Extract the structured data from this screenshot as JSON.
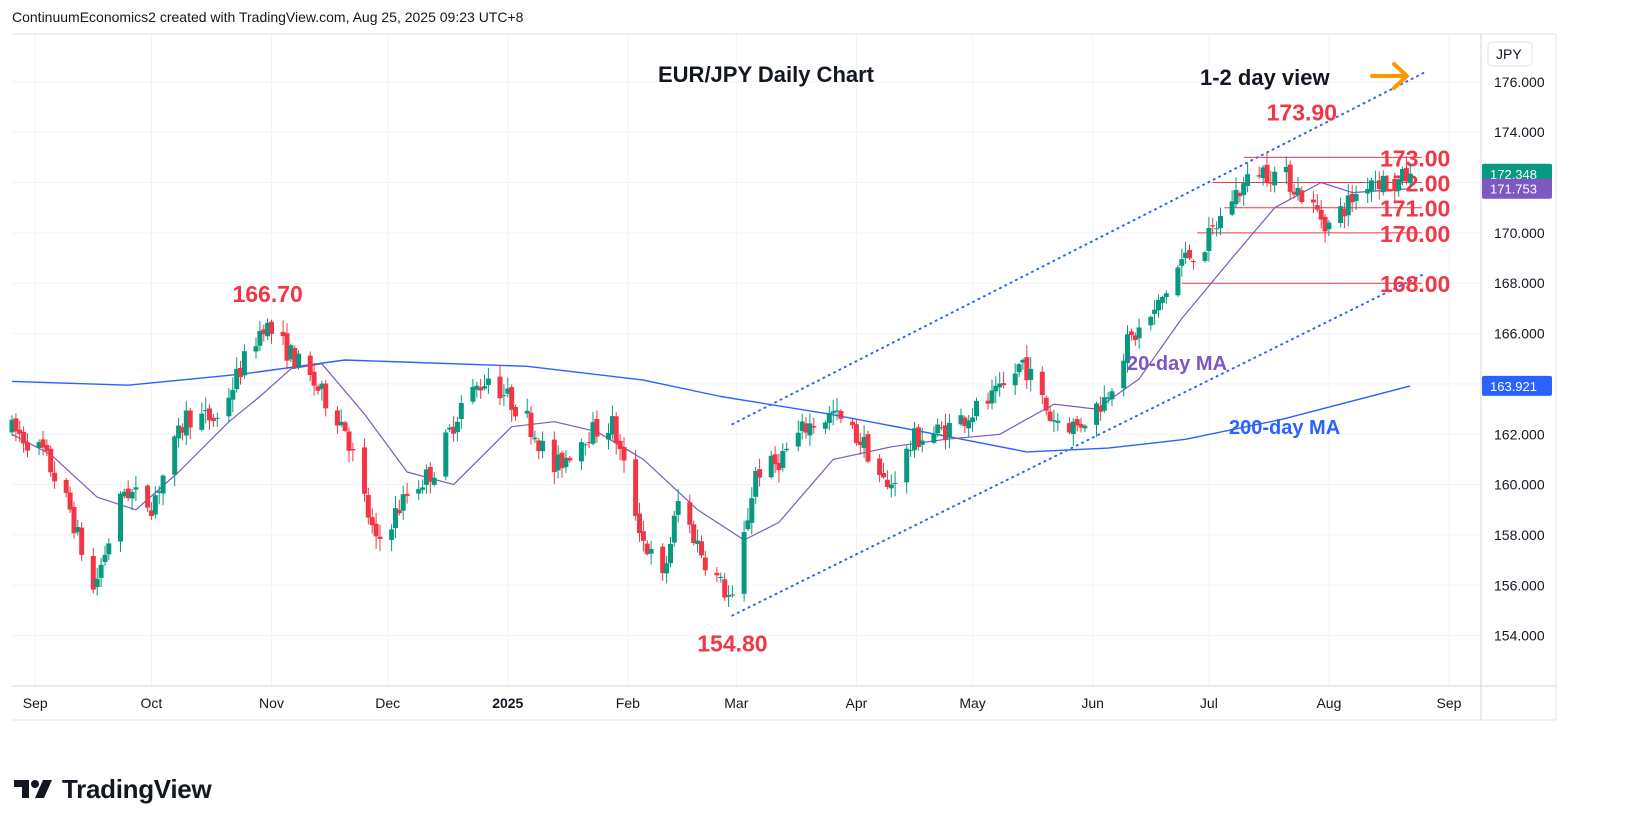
{
  "header": {
    "text": "ContinuumEconomics2 created with TradingView.com, Aug 25, 2025 09:23 UTC+8"
  },
  "brand": {
    "name": "TradingView"
  },
  "chart_data": {
    "type": "candlestick",
    "title": "EUR/JPY Daily Chart",
    "view_label": "1-2 day view",
    "currency": "JPY",
    "y_range": [
      152.0,
      177.9
    ],
    "y_ticks": [
      "154.000",
      "156.000",
      "158.000",
      "160.000",
      "162.000",
      "164.000",
      "166.000",
      "168.000",
      "170.000",
      "172.000",
      "174.000",
      "176.000"
    ],
    "x_ticks": [
      {
        "date": "2024-09-01",
        "label": "Sep",
        "bold": false
      },
      {
        "date": "2024-10-01",
        "label": "Oct",
        "bold": false
      },
      {
        "date": "2024-11-01",
        "label": "Nov",
        "bold": false
      },
      {
        "date": "2024-12-01",
        "label": "Dec",
        "bold": false
      },
      {
        "date": "2025-01-01",
        "label": "2025",
        "bold": true
      },
      {
        "date": "2025-02-01",
        "label": "Feb",
        "bold": false
      },
      {
        "date": "2025-03-01",
        "label": "Mar",
        "bold": false
      },
      {
        "date": "2025-04-01",
        "label": "Apr",
        "bold": false
      },
      {
        "date": "2025-05-01",
        "label": "May",
        "bold": false
      },
      {
        "date": "2025-06-01",
        "label": "Jun",
        "bold": false
      },
      {
        "date": "2025-07-01",
        "label": "Jul",
        "bold": false
      },
      {
        "date": "2025-08-01",
        "label": "Aug",
        "bold": false
      },
      {
        "date": "2025-09-01",
        "label": "Sep",
        "bold": false
      }
    ],
    "candle_path": [
      [
        "2024-08-26",
        162.2
      ],
      [
        "2024-09-03",
        161.3
      ],
      [
        "2024-09-10",
        159.0
      ],
      [
        "2024-09-16",
        155.8
      ],
      [
        "2024-09-24",
        159.8
      ],
      [
        "2024-10-01",
        159.2
      ],
      [
        "2024-10-10",
        162.7
      ],
      [
        "2024-10-18",
        162.6
      ],
      [
        "2024-10-24",
        164.6
      ],
      [
        "2024-10-30",
        166.4
      ],
      [
        "2024-11-07",
        165.0
      ],
      [
        "2024-11-13",
        163.8
      ],
      [
        "2024-11-20",
        162.3
      ],
      [
        "2024-11-28",
        157.6
      ],
      [
        "2024-12-06",
        159.6
      ],
      [
        "2024-12-13",
        160.6
      ],
      [
        "2024-12-20",
        163.2
      ],
      [
        "2024-12-27",
        164.3
      ],
      [
        "2025-01-06",
        162.6
      ],
      [
        "2025-01-13",
        160.6
      ],
      [
        "2025-01-21",
        162.0
      ],
      [
        "2025-01-28",
        162.4
      ],
      [
        "2025-02-05",
        157.8
      ],
      [
        "2025-02-10",
        156.2
      ],
      [
        "2025-02-14",
        159.3
      ],
      [
        "2025-02-21",
        157.0
      ],
      [
        "2025-02-28",
        155.3
      ],
      [
        "2025-03-06",
        160.5
      ],
      [
        "2025-03-11",
        160.8
      ],
      [
        "2025-03-19",
        162.3
      ],
      [
        "2025-03-26",
        162.8
      ],
      [
        "2025-04-03",
        161.6
      ],
      [
        "2025-04-09",
        159.8
      ],
      [
        "2025-04-16",
        161.8
      ],
      [
        "2025-04-24",
        162.2
      ],
      [
        "2025-05-01",
        162.9
      ],
      [
        "2025-05-08",
        163.6
      ],
      [
        "2025-05-14",
        164.9
      ],
      [
        "2025-05-21",
        162.7
      ],
      [
        "2025-05-28",
        162.3
      ],
      [
        "2025-06-04",
        163.4
      ],
      [
        "2025-06-10",
        165.6
      ],
      [
        "2025-06-17",
        166.8
      ],
      [
        "2025-06-24",
        168.9
      ],
      [
        "2025-06-30",
        169.5
      ],
      [
        "2025-07-07",
        171.4
      ],
      [
        "2025-07-14",
        172.5
      ],
      [
        "2025-07-21",
        172.2
      ],
      [
        "2025-07-28",
        171.0
      ],
      [
        "2025-08-01",
        170.3
      ],
      [
        "2025-08-06",
        171.2
      ],
      [
        "2025-08-12",
        172.2
      ],
      [
        "2025-08-18",
        171.9
      ],
      [
        "2025-08-22",
        172.35
      ]
    ],
    "ma20_label": "20-day MA",
    "ma20": [
      [
        "2024-08-26",
        162.0
      ],
      [
        "2024-09-05",
        161.2
      ],
      [
        "2024-09-17",
        159.5
      ],
      [
        "2024-09-27",
        159.0
      ],
      [
        "2024-10-08",
        160.5
      ],
      [
        "2024-10-21",
        162.5
      ],
      [
        "2024-10-29",
        163.5
      ],
      [
        "2024-11-06",
        164.6
      ],
      [
        "2024-11-14",
        164.8
      ],
      [
        "2024-11-25",
        162.8
      ],
      [
        "2024-12-06",
        160.5
      ],
      [
        "2024-12-18",
        160.0
      ],
      [
        "2025-01-02",
        162.3
      ],
      [
        "2025-01-13",
        162.5
      ],
      [
        "2025-01-24",
        162.1
      ],
      [
        "2025-02-05",
        161.0
      ],
      [
        "2025-02-19",
        159.0
      ],
      [
        "2025-03-03",
        157.8
      ],
      [
        "2025-03-12",
        158.5
      ],
      [
        "2025-03-26",
        161.0
      ],
      [
        "2025-04-10",
        161.5
      ],
      [
        "2025-04-24",
        161.8
      ],
      [
        "2025-05-08",
        162.0
      ],
      [
        "2025-05-22",
        163.2
      ],
      [
        "2025-06-02",
        163.0
      ],
      [
        "2025-06-13",
        164.2
      ],
      [
        "2025-06-24",
        166.6
      ],
      [
        "2025-07-07",
        169.0
      ],
      [
        "2025-07-18",
        171.0
      ],
      [
        "2025-07-30",
        172.0
      ],
      [
        "2025-08-07",
        171.6
      ],
      [
        "2025-08-22",
        171.753
      ]
    ],
    "ma200_label": "200-day MA",
    "ma200": [
      [
        "2024-08-26",
        164.1
      ],
      [
        "2024-09-25",
        163.95
      ],
      [
        "2024-10-25",
        164.4
      ],
      [
        "2024-11-20",
        164.95
      ],
      [
        "2025-01-06",
        164.7
      ],
      [
        "2025-02-05",
        164.15
      ],
      [
        "2025-02-25",
        163.5
      ],
      [
        "2025-03-25",
        162.8
      ],
      [
        "2025-04-25",
        161.9
      ],
      [
        "2025-05-15",
        161.3
      ],
      [
        "2025-06-05",
        161.45
      ],
      [
        "2025-06-25",
        161.8
      ],
      [
        "2025-07-20",
        162.6
      ],
      [
        "2025-08-22",
        163.921
      ]
    ],
    "channel_upper": [
      [
        "2025-02-28",
        162.4
      ],
      [
        "2025-08-26",
        176.4
      ]
    ],
    "channel_lower": [
      [
        "2025-02-28",
        154.8
      ],
      [
        "2025-08-26",
        168.4
      ]
    ],
    "levels": [
      {
        "value": 173.0,
        "label": "173.00",
        "from": "2025-07-10",
        "to": "2025-08-25"
      },
      {
        "value": 172.0,
        "label": "172.00",
        "from": "2025-07-02",
        "to": "2025-08-25"
      },
      {
        "value": 171.0,
        "label": "171.00",
        "from": "2025-07-05",
        "to": "2025-08-25"
      },
      {
        "value": 170.0,
        "label": "170.00",
        "from": "2025-06-28",
        "to": "2025-08-25"
      },
      {
        "value": 168.0,
        "label": "168.00",
        "from": "2025-06-24",
        "to": "2025-08-25"
      }
    ],
    "annotations": [
      {
        "text": "166.70",
        "date": "2024-10-31",
        "value": 166.7,
        "place": "above"
      },
      {
        "text": "154.80",
        "date": "2025-02-28",
        "value": 154.8,
        "place": "below"
      },
      {
        "text": "173.90",
        "date": "2025-07-25",
        "value": 173.9,
        "place": "above"
      }
    ],
    "price_badges": [
      {
        "value": 172.348,
        "label": "172.348",
        "color": "#089981"
      },
      {
        "value": 171.753,
        "label": "171.753",
        "color": "#7e57c2"
      },
      {
        "value": 163.921,
        "label": "163.921",
        "color": "#2962ff"
      }
    ],
    "colors": {
      "up": "#089981",
      "down": "#f23645",
      "ma20": "#7e57c2",
      "ma200": "#2962ff",
      "channel": "#2962ff",
      "level": "#f23645",
      "annotation": "#f23645",
      "arrow": "#ff9800"
    }
  }
}
